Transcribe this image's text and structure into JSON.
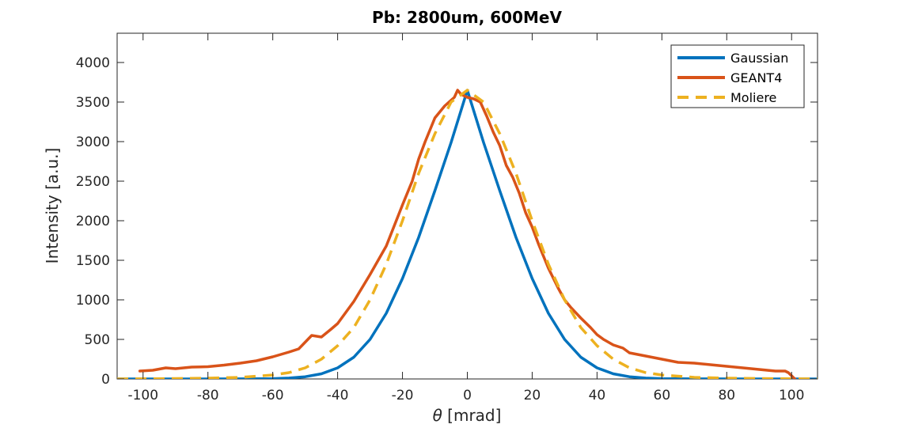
{
  "chart_data": {
    "type": "line",
    "title": "Pb: 2800um, 600MeV",
    "xlabel_symbol": "θ",
    "xlabel_unit": " [mrad]",
    "ylabel": "Intensity [a.u.]",
    "xlim": [
      -108,
      108
    ],
    "ylim": [
      0,
      4370
    ],
    "xticks": [
      -100,
      -80,
      -60,
      -40,
      -20,
      0,
      20,
      40,
      60,
      80,
      100
    ],
    "yticks": [
      0,
      500,
      1000,
      1500,
      2000,
      2500,
      3000,
      3500,
      4000
    ],
    "grid": false,
    "legend_position": "top-right",
    "series": [
      {
        "name": "Gaussian",
        "color": "#0072BD",
        "dash": "solid",
        "x": [
          -108,
          -90,
          -70,
          -60,
          -55,
          -50,
          -45,
          -40,
          -35,
          -30,
          -25,
          -20,
          -15,
          -10,
          -5,
          0,
          5,
          10,
          15,
          20,
          25,
          30,
          35,
          40,
          45,
          50,
          55,
          60,
          70,
          90,
          108
        ],
        "y": [
          0,
          0,
          1,
          4,
          11,
          28,
          65,
          140,
          275,
          500,
          830,
          1270,
          1790,
          2380,
          2990,
          3650,
          2990,
          2380,
          1790,
          1270,
          830,
          500,
          275,
          140,
          65,
          28,
          11,
          4,
          1,
          0,
          0
        ]
      },
      {
        "name": "GEANT4",
        "color": "#D95319",
        "dash": "solid",
        "x": [
          -101,
          -97,
          -93,
          -90,
          -85,
          -80,
          -75,
          -70,
          -65,
          -60,
          -55,
          -52,
          -48,
          -45,
          -42,
          -40,
          -35,
          -30,
          -25,
          -20,
          -17,
          -15,
          -13,
          -10,
          -7,
          -4,
          -3,
          -2,
          0,
          2,
          4,
          6,
          8,
          10,
          12,
          14,
          16,
          18,
          20,
          22,
          25,
          28,
          30,
          32,
          35,
          38,
          40,
          42,
          45,
          48,
          50,
          55,
          60,
          65,
          70,
          75,
          80,
          85,
          90,
          95,
          98,
          99,
          101
        ],
        "y": [
          100,
          110,
          140,
          130,
          150,
          155,
          175,
          200,
          230,
          280,
          340,
          380,
          550,
          530,
          630,
          700,
          980,
          1320,
          1680,
          2200,
          2500,
          2780,
          3000,
          3300,
          3450,
          3560,
          3650,
          3600,
          3560,
          3540,
          3500,
          3320,
          3120,
          2950,
          2700,
          2550,
          2350,
          2100,
          1920,
          1700,
          1400,
          1150,
          1000,
          900,
          770,
          650,
          560,
          500,
          430,
          390,
          330,
          290,
          250,
          210,
          200,
          180,
          160,
          140,
          120,
          100,
          100,
          80,
          0
        ]
      },
      {
        "name": "Moliere",
        "color": "#EDB120",
        "dash": "dashed",
        "x": [
          -108,
          -90,
          -80,
          -70,
          -60,
          -55,
          -50,
          -45,
          -40,
          -35,
          -30,
          -25,
          -20,
          -15,
          -10,
          -5,
          0,
          5,
          10,
          15,
          20,
          25,
          30,
          35,
          40,
          45,
          50,
          55,
          60,
          70,
          80,
          90,
          108
        ],
        "y": [
          0,
          5,
          10,
          20,
          50,
          80,
          140,
          250,
          420,
          650,
          1000,
          1450,
          2000,
          2600,
          3100,
          3500,
          3650,
          3500,
          3100,
          2600,
          2000,
          1450,
          1000,
          650,
          420,
          250,
          140,
          80,
          50,
          20,
          10,
          5,
          0
        ]
      }
    ]
  }
}
